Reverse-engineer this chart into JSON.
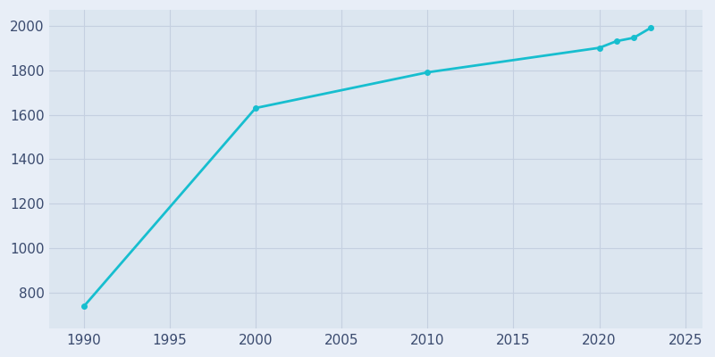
{
  "years": [
    1990,
    2000,
    2010,
    2020,
    2021,
    2022,
    2023
  ],
  "population": [
    740,
    1630,
    1790,
    1900,
    1930,
    1945,
    1990
  ],
  "line_color": "#17becf",
  "marker_color": "#17becf",
  "background_color": "#e8eef7",
  "axes_bg_color": "#dce6f0",
  "xlim": [
    1988,
    2026
  ],
  "ylim": [
    640,
    2070
  ],
  "xticks": [
    1990,
    1995,
    2000,
    2005,
    2010,
    2015,
    2020,
    2025
  ],
  "yticks": [
    800,
    1000,
    1200,
    1400,
    1600,
    1800,
    2000
  ],
  "grid_color": "#c5d0e0",
  "tick_label_color": "#3a4a6e",
  "tick_size": 11
}
